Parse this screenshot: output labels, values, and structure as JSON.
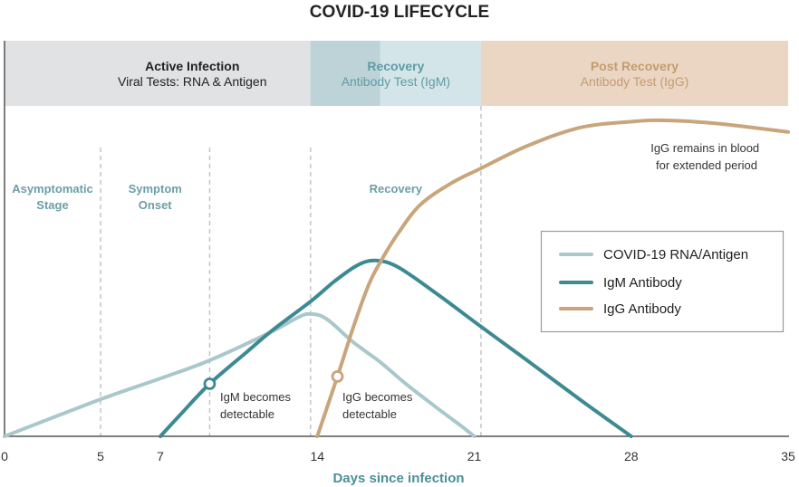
{
  "colors": {
    "title": "#222222",
    "axis": "#555555",
    "stage_line": "#bdbdbd",
    "stage_text": "#6c9ea7",
    "axis_label": "#4a8f98",
    "annotation_text": "#333333",
    "tick_text": "#333333",
    "legend_border": "#9a9a9a",
    "phase_overlap": "#bdd3d8"
  },
  "chart_data": {
    "type": "line",
    "title": "COVID-19 LIFECYCLE",
    "xlabel": "Days since infection",
    "ylabel": "",
    "xlim": [
      0,
      35
    ],
    "ylim": [
      0,
      100
    ],
    "x_ticks": [
      0,
      5,
      7,
      14,
      21,
      28,
      35
    ],
    "grid": false,
    "legend": {
      "placement": "center-right"
    },
    "series": [
      {
        "name": "COVID-19 RNA/Antigen",
        "color": "#a9c8cc",
        "points": [
          [
            0,
            0
          ],
          [
            5,
            11.2
          ],
          [
            7,
            17.5
          ],
          [
            9.2,
            23.0
          ],
          [
            12.0,
            31.8
          ],
          [
            13.2,
            36.2
          ],
          [
            13.7,
            37.0
          ],
          [
            14.4,
            35.6
          ],
          [
            15.6,
            28.5
          ],
          [
            16.8,
            22.5
          ],
          [
            18.0,
            15.6
          ],
          [
            19.3,
            8.8
          ],
          [
            20.5,
            2.7
          ],
          [
            21,
            0
          ]
        ]
      },
      {
        "name": "IgM Antibody",
        "color": "#3d8a93",
        "points": [
          [
            7,
            0
          ],
          [
            7.9,
            6.6
          ],
          [
            9.2,
            15.9
          ],
          [
            10.8,
            25.2
          ],
          [
            12.0,
            32.1
          ],
          [
            13.7,
            40.8
          ],
          [
            14.8,
            47.1
          ],
          [
            15.8,
            51.8
          ],
          [
            16.6,
            53.2
          ],
          [
            17.6,
            51.2
          ],
          [
            19.3,
            43.3
          ],
          [
            21.3,
            33.2
          ],
          [
            23.3,
            23.3
          ],
          [
            25.7,
            11.2
          ],
          [
            28,
            0
          ]
        ]
      },
      {
        "name": "IgG Antibody",
        "color": "#c8a57b",
        "points": [
          [
            14.0,
            0
          ],
          [
            14.9,
            18.1
          ],
          [
            15.6,
            32.9
          ],
          [
            16.3,
            46.0
          ],
          [
            16.8,
            52.6
          ],
          [
            17.6,
            61.4
          ],
          [
            18.6,
            70.1
          ],
          [
            20.0,
            76.7
          ],
          [
            21.3,
            81.1
          ],
          [
            23.3,
            87.7
          ],
          [
            25.7,
            93.4
          ],
          [
            28.1,
            95.3
          ],
          [
            29.7,
            95.6
          ],
          [
            32.1,
            94.5
          ],
          [
            35.0,
            92.1
          ]
        ]
      }
    ],
    "phases": [
      {
        "label": "Active Infection",
        "sublabel": "Viral Tests: RNA & Antigen",
        "x_range": [
          0,
          16.8
        ],
        "color": "#e1e2e4",
        "text_color": "#222222"
      },
      {
        "label": "Recovery",
        "sublabel": "Antibody Test (IgM)",
        "x_range": [
          13.7,
          21.3
        ],
        "color": "#d3e5e9",
        "text_color": "#5f9ca5"
      },
      {
        "label": "Post Recovery",
        "sublabel": "Antibody Test (IgG)",
        "x_range": [
          21.3,
          35
        ],
        "color": "#ead6c3",
        "text_color": "#c49c72"
      }
    ],
    "stage_boundaries": [
      5,
      9.2,
      13.7,
      21.3
    ],
    "stages": [
      {
        "lines": [
          "Asymptomatic",
          "Stage"
        ],
        "x_range": [
          0,
          5
        ]
      },
      {
        "lines": [
          "Symptom",
          "Onset"
        ],
        "x_range": [
          5,
          9.2
        ]
      },
      {
        "lines": [
          "Recovery"
        ],
        "x_range": [
          13.7,
          21.3
        ]
      }
    ],
    "annotations": [
      {
        "lines": [
          "IgM becomes",
          "detectable"
        ],
        "series_index": 1,
        "x": 9.2,
        "y": 15.9,
        "marker": true
      },
      {
        "lines": [
          "IgG becomes",
          "detectable"
        ],
        "series_index": 2,
        "x": 14.9,
        "y": 18.1,
        "marker": true
      },
      {
        "lines": [
          "IgG remains in blood",
          "for extended period"
        ],
        "series_index": 2,
        "marker": false
      }
    ]
  }
}
